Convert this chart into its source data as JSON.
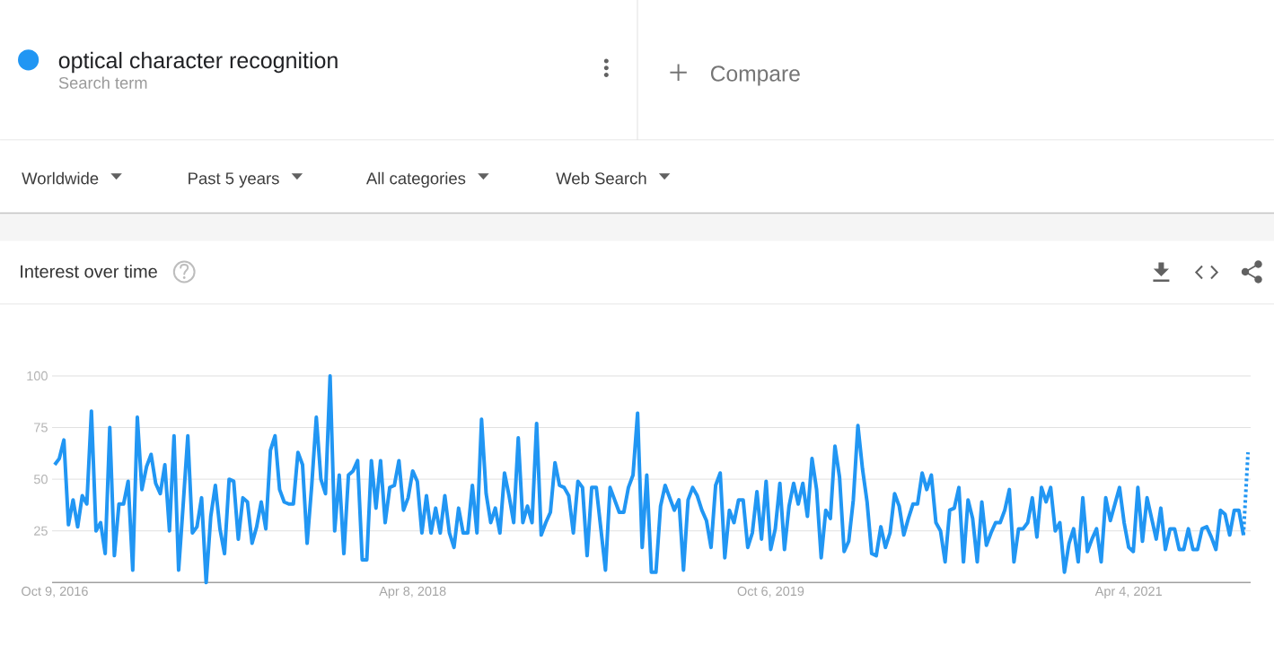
{
  "chart_data": {
    "type": "line",
    "title": "Interest over time",
    "annotations": [
      "Search term",
      "Compare",
      "Worldwide",
      "Past 5 years",
      "All categories",
      "Web Search"
    ],
    "x": [
      "2016-10-09",
      "2016-10-16",
      "2016-10-23",
      "2016-10-30",
      "2016-11-06",
      "2016-11-13",
      "2016-11-20",
      "2016-11-27",
      "2016-12-04",
      "2016-12-11",
      "2016-12-18",
      "2016-12-25",
      "2017-01-01",
      "2017-01-08",
      "2017-01-15",
      "2017-01-22",
      "2017-01-29",
      "2017-02-05",
      "2017-02-12",
      "2017-02-19",
      "2017-02-26",
      "2017-03-05",
      "2017-03-12",
      "2017-03-19",
      "2017-03-26",
      "2017-04-02",
      "2017-04-09",
      "2017-04-16",
      "2017-04-23",
      "2017-04-30",
      "2017-05-07",
      "2017-05-14",
      "2017-05-21",
      "2017-05-28",
      "2017-06-04",
      "2017-06-11",
      "2017-06-18",
      "2017-06-25",
      "2017-07-02",
      "2017-07-09",
      "2017-07-16",
      "2017-07-23",
      "2017-07-30",
      "2017-08-06",
      "2017-08-13",
      "2017-08-20",
      "2017-08-27",
      "2017-09-03",
      "2017-09-10",
      "2017-09-17",
      "2017-09-24",
      "2017-10-01",
      "2017-10-08",
      "2017-10-15",
      "2017-10-22",
      "2017-10-29",
      "2017-11-05",
      "2017-11-12",
      "2017-11-19",
      "2017-11-26",
      "2017-12-03",
      "2017-12-10",
      "2017-12-17",
      "2017-12-24",
      "2017-12-31",
      "2018-01-07",
      "2018-01-14",
      "2018-01-21",
      "2018-01-28",
      "2018-02-04",
      "2018-02-11",
      "2018-02-18",
      "2018-02-25",
      "2018-03-04",
      "2018-03-11",
      "2018-03-18",
      "2018-03-25",
      "2018-04-01",
      "2018-04-08",
      "2018-04-15",
      "2018-04-22",
      "2018-04-29",
      "2018-05-06",
      "2018-05-13",
      "2018-05-20",
      "2018-05-27",
      "2018-06-03",
      "2018-06-10",
      "2018-06-17",
      "2018-06-24",
      "2018-07-01",
      "2018-07-08",
      "2018-07-15",
      "2018-07-22",
      "2018-07-29",
      "2018-08-05",
      "2018-08-12",
      "2018-08-19",
      "2018-08-26",
      "2018-09-02",
      "2018-09-09",
      "2018-09-16",
      "2018-09-23",
      "2018-09-30",
      "2018-10-07",
      "2018-10-14",
      "2018-10-21",
      "2018-10-28",
      "2018-11-04",
      "2018-11-11",
      "2018-11-18",
      "2018-11-25",
      "2018-12-02",
      "2018-12-09",
      "2018-12-16",
      "2018-12-23",
      "2018-12-30",
      "2019-01-06",
      "2019-01-13",
      "2019-01-20",
      "2019-01-27",
      "2019-02-03",
      "2019-02-10",
      "2019-02-17",
      "2019-02-24",
      "2019-03-03",
      "2019-03-10",
      "2019-03-17",
      "2019-03-24",
      "2019-03-31",
      "2019-04-07",
      "2019-04-14",
      "2019-04-21",
      "2019-04-28",
      "2019-05-05",
      "2019-05-12",
      "2019-05-19",
      "2019-05-26",
      "2019-06-02",
      "2019-06-09",
      "2019-06-16",
      "2019-06-23",
      "2019-06-30",
      "2019-07-07",
      "2019-07-14",
      "2019-07-21",
      "2019-07-28",
      "2019-08-04",
      "2019-08-11",
      "2019-08-18",
      "2019-08-25",
      "2019-09-01",
      "2019-09-08",
      "2019-09-15",
      "2019-09-22",
      "2019-09-29",
      "2019-10-06",
      "2019-10-13",
      "2019-10-20",
      "2019-10-27",
      "2019-11-03",
      "2019-11-10",
      "2019-11-17",
      "2019-11-24",
      "2019-12-01",
      "2019-12-08",
      "2019-12-15",
      "2019-12-22",
      "2019-12-29",
      "2020-01-05",
      "2020-01-12",
      "2020-01-19",
      "2020-01-26",
      "2020-02-02",
      "2020-02-09",
      "2020-02-16",
      "2020-02-23",
      "2020-03-01",
      "2020-03-08",
      "2020-03-15",
      "2020-03-22",
      "2020-03-29",
      "2020-04-05",
      "2020-04-12",
      "2020-04-19",
      "2020-04-26",
      "2020-05-03",
      "2020-05-10",
      "2020-05-17",
      "2020-05-24",
      "2020-05-31",
      "2020-06-07",
      "2020-06-14",
      "2020-06-21",
      "2020-06-28",
      "2020-07-05",
      "2020-07-12",
      "2020-07-19",
      "2020-07-26",
      "2020-08-02",
      "2020-08-09",
      "2020-08-16",
      "2020-08-23",
      "2020-08-30",
      "2020-09-06",
      "2020-09-13",
      "2020-09-20",
      "2020-09-27",
      "2020-10-04",
      "2020-10-11",
      "2020-10-18",
      "2020-10-25",
      "2020-11-01",
      "2020-11-08",
      "2020-11-15",
      "2020-11-22",
      "2020-11-29",
      "2020-12-06",
      "2020-12-13",
      "2020-12-20",
      "2020-12-27",
      "2021-01-03",
      "2021-01-10",
      "2021-01-17",
      "2021-01-24",
      "2021-01-31",
      "2021-02-07",
      "2021-02-14",
      "2021-02-21",
      "2021-02-28",
      "2021-03-07",
      "2021-03-14",
      "2021-03-21",
      "2021-03-28",
      "2021-04-04",
      "2021-04-11",
      "2021-04-18",
      "2021-04-25",
      "2021-05-02",
      "2021-05-09",
      "2021-05-16",
      "2021-05-23",
      "2021-05-30",
      "2021-06-06",
      "2021-06-13",
      "2021-06-20",
      "2021-06-27",
      "2021-07-04",
      "2021-07-11",
      "2021-07-18",
      "2021-07-25",
      "2021-08-01",
      "2021-08-08",
      "2021-08-15",
      "2021-08-22",
      "2021-08-29",
      "2021-09-05",
      "2021-09-12",
      "2021-09-19",
      "2021-09-26"
    ],
    "series": [
      {
        "name": "optical character recognition",
        "color": "#2196f3",
        "values": [
          57,
          60,
          69,
          28,
          40,
          27,
          42,
          38,
          83,
          25,
          29,
          14,
          75,
          13,
          38,
          38,
          49,
          6,
          80,
          45,
          56,
          62,
          48,
          43,
          57,
          25,
          71,
          6,
          38,
          71,
          24,
          27,
          41,
          0,
          32,
          47,
          26,
          14,
          50,
          49,
          21,
          41,
          39,
          19,
          27,
          39,
          26,
          64,
          71,
          45,
          39,
          38,
          38,
          63,
          57,
          19,
          47,
          80,
          50,
          43,
          100,
          25,
          52,
          14,
          52,
          54,
          59,
          11,
          11,
          59,
          36,
          59,
          29,
          46,
          47,
          59,
          35,
          41,
          54,
          49,
          24,
          42,
          24,
          36,
          24,
          42,
          24,
          17,
          36,
          24,
          24,
          47,
          24,
          79,
          43,
          29,
          36,
          24,
          53,
          42,
          29,
          70,
          29,
          37,
          29,
          77,
          23,
          29,
          34,
          58,
          47,
          46,
          42,
          24,
          49,
          46,
          13,
          46,
          46,
          26,
          6,
          46,
          40,
          34,
          34,
          46,
          52,
          82,
          17,
          52,
          5,
          5,
          37,
          47,
          41,
          35,
          40,
          6,
          40,
          46,
          42,
          35,
          30,
          17,
          47,
          53,
          12,
          35,
          29,
          40,
          40,
          17,
          24,
          44,
          21,
          49,
          16,
          26,
          48,
          16,
          37,
          48,
          38,
          48,
          32,
          60,
          45,
          12,
          35,
          31,
          66,
          51,
          15,
          20,
          40,
          76,
          55,
          39,
          14,
          13,
          27,
          17,
          24,
          43,
          37,
          23,
          31,
          38,
          38,
          53,
          45,
          52,
          29,
          25,
          10,
          35,
          36,
          46,
          10,
          40,
          31,
          10,
          39,
          18,
          24,
          29,
          29,
          35,
          45,
          10,
          26,
          26,
          29,
          41,
          22,
          46,
          39,
          46,
          25,
          29,
          5,
          19,
          26,
          10,
          41,
          15,
          21,
          26,
          10,
          41,
          30,
          38,
          46,
          29,
          17,
          15,
          46,
          20,
          41,
          31,
          21,
          36,
          16,
          26,
          26,
          16,
          16,
          26,
          16,
          16,
          26,
          27,
          22,
          16,
          35,
          33,
          23,
          35,
          35,
          23
        ]
      },
      {
        "color": "#2196f3",
        "line_style": "dotted",
        "x": [
          "2021-09-26",
          "2021-10-03"
        ],
        "values": [
          23,
          63
        ]
      }
    ],
    "xlim": [
      "2016-10-05",
      "2021-10-07"
    ],
    "ylim": [
      0,
      100
    ],
    "xticks": [
      {
        "value": "2016-10-09",
        "label": "Oct 9, 2016"
      },
      {
        "value": "2018-04-08",
        "label": "Apr 8, 2018"
      },
      {
        "value": "2019-10-06",
        "label": "Oct 6, 2019"
      },
      {
        "value": "2021-04-04",
        "label": "Apr 4, 2021"
      }
    ],
    "yticks": [
      25,
      50,
      75,
      100
    ],
    "grid": "y",
    "legend": "top left"
  }
}
